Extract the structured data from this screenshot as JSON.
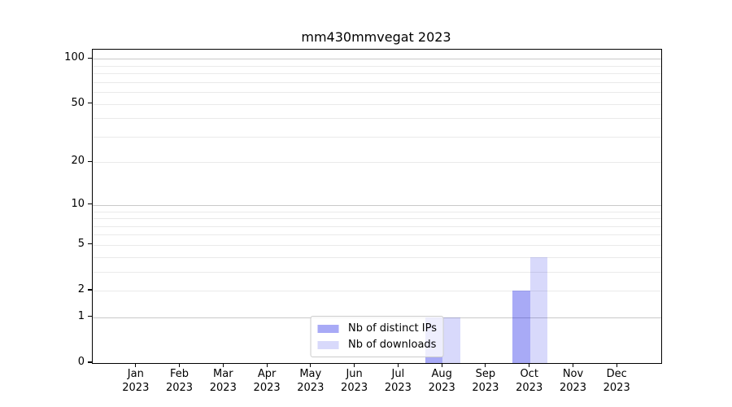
{
  "chart_data": {
    "type": "bar",
    "title": "mm430mmvegat 2023",
    "categories": [
      {
        "month": "Jan",
        "year": "2023"
      },
      {
        "month": "Feb",
        "year": "2023"
      },
      {
        "month": "Mar",
        "year": "2023"
      },
      {
        "month": "Apr",
        "year": "2023"
      },
      {
        "month": "May",
        "year": "2023"
      },
      {
        "month": "Jun",
        "year": "2023"
      },
      {
        "month": "Jul",
        "year": "2023"
      },
      {
        "month": "Aug",
        "year": "2023"
      },
      {
        "month": "Sep",
        "year": "2023"
      },
      {
        "month": "Oct",
        "year": "2023"
      },
      {
        "month": "Nov",
        "year": "2023"
      },
      {
        "month": "Dec",
        "year": "2023"
      }
    ],
    "series": [
      {
        "name": "Nb of distinct IPs",
        "color": "rgba(15,20,230,0.36)",
        "values": [
          0,
          0,
          0,
          0,
          0,
          0,
          0,
          1,
          0,
          2,
          0,
          0
        ]
      },
      {
        "name": "Nb of downloads",
        "color": "rgba(15,20,230,0.16)",
        "values": [
          0,
          0,
          0,
          0,
          0,
          0,
          0,
          1,
          0,
          4,
          0,
          0
        ]
      }
    ],
    "y_ticks": [
      0,
      1,
      2,
      5,
      10,
      20,
      50,
      100
    ],
    "y_scale": "log1p",
    "ylim": [
      0,
      115
    ],
    "xlabel": "",
    "ylabel": "",
    "grid": true,
    "legend_position": "lower center"
  },
  "styles": {
    "grid_major_color": "#c9c9c9",
    "grid_minor_color": "#eaeaea",
    "spine_color": "#000000",
    "legend_border_color": "#cccccc",
    "legend_bg": "rgba(255,255,255,0.8)",
    "text_color": "#000000"
  }
}
